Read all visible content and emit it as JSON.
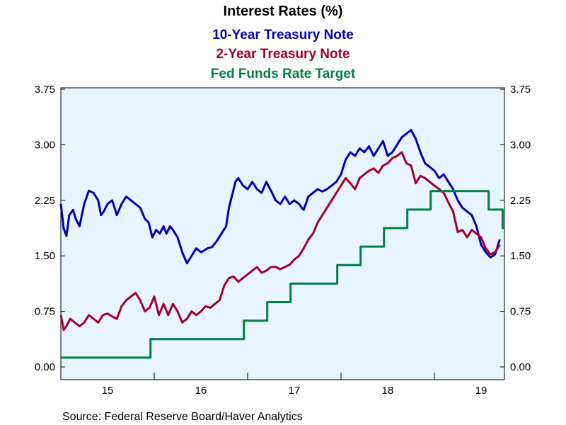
{
  "chart_data": {
    "type": "line",
    "title": "Interest Rates (%)",
    "source": "Source:  Federal Reserve Board/Haver Analytics",
    "ylim": [
      0,
      3.75
    ],
    "y_ticks": [
      "0.00",
      "0.75",
      "1.50",
      "2.25",
      "3.00",
      "3.75"
    ],
    "y_tick_values": [
      0,
      0.75,
      1.5,
      2.25,
      3.0,
      3.75
    ],
    "xlim": [
      2015.0,
      2019.75
    ],
    "x_tick_labels": [
      "15",
      "16",
      "17",
      "18",
      "19"
    ],
    "x_tick_label_positions": [
      2015.5,
      2016.5,
      2017.5,
      2018.5,
      2019.5
    ],
    "x_year_boundaries": [
      2016,
      2017,
      2018,
      2019
    ],
    "plot_background": "#E8F4FF",
    "series": [
      {
        "name": "10-Year Treasury Note",
        "color": "#0000B0",
        "x": [
          2015.0,
          2015.03,
          2015.06,
          2015.09,
          2015.13,
          2015.16,
          2015.2,
          2015.25,
          2015.3,
          2015.35,
          2015.4,
          2015.43,
          2015.46,
          2015.5,
          2015.55,
          2015.6,
          2015.65,
          2015.7,
          2015.75,
          2015.8,
          2015.85,
          2015.9,
          2015.94,
          2015.98,
          2016.02,
          2016.06,
          2016.1,
          2016.13,
          2016.17,
          2016.2,
          2016.25,
          2016.3,
          2016.35,
          2016.4,
          2016.45,
          2016.5,
          2016.53,
          2016.57,
          2016.62,
          2016.67,
          2016.72,
          2016.77,
          2016.8,
          2016.84,
          2016.87,
          2016.9,
          2016.95,
          2017.0,
          2017.05,
          2017.1,
          2017.15,
          2017.2,
          2017.25,
          2017.3,
          2017.35,
          2017.4,
          2017.45,
          2017.5,
          2017.55,
          2017.6,
          2017.65,
          2017.7,
          2017.75,
          2017.8,
          2017.85,
          2017.9,
          2017.95,
          2018.0,
          2018.05,
          2018.1,
          2018.15,
          2018.2,
          2018.25,
          2018.3,
          2018.35,
          2018.4,
          2018.45,
          2018.5,
          2018.55,
          2018.6,
          2018.65,
          2018.7,
          2018.75,
          2018.8,
          2018.85,
          2018.9,
          2018.95,
          2019.0,
          2019.05,
          2019.1,
          2019.15,
          2019.2,
          2019.25,
          2019.3,
          2019.35,
          2019.4,
          2019.45,
          2019.5,
          2019.55,
          2019.6,
          2019.65,
          2019.7
        ],
        "values": [
          2.2,
          1.87,
          1.77,
          2.05,
          2.12,
          2.0,
          1.9,
          2.2,
          2.38,
          2.35,
          2.25,
          2.05,
          2.1,
          2.2,
          2.25,
          2.05,
          2.2,
          2.3,
          2.25,
          2.2,
          2.15,
          2.0,
          1.95,
          1.75,
          1.85,
          1.8,
          1.9,
          1.8,
          1.9,
          1.85,
          1.75,
          1.55,
          1.4,
          1.5,
          1.6,
          1.55,
          1.57,
          1.6,
          1.62,
          1.7,
          1.8,
          1.9,
          2.15,
          2.35,
          2.5,
          2.55,
          2.45,
          2.4,
          2.5,
          2.4,
          2.35,
          2.5,
          2.38,
          2.25,
          2.2,
          2.3,
          2.2,
          2.25,
          2.2,
          2.12,
          2.3,
          2.35,
          2.4,
          2.37,
          2.4,
          2.45,
          2.5,
          2.6,
          2.8,
          2.9,
          2.85,
          2.95,
          2.9,
          2.98,
          2.85,
          2.95,
          3.05,
          2.85,
          2.9,
          3.0,
          3.1,
          3.15,
          3.2,
          3.08,
          2.9,
          2.75,
          2.7,
          2.65,
          2.55,
          2.6,
          2.5,
          2.4,
          2.25,
          2.15,
          2.1,
          2.05,
          1.9,
          1.65,
          1.55,
          1.48,
          1.52,
          1.72
        ]
      },
      {
        "name": "2-Year Treasury Note",
        "color": "#A0002C",
        "x": [
          2015.0,
          2015.03,
          2015.06,
          2015.1,
          2015.15,
          2015.2,
          2015.25,
          2015.3,
          2015.35,
          2015.4,
          2015.45,
          2015.5,
          2015.55,
          2015.6,
          2015.65,
          2015.7,
          2015.75,
          2015.8,
          2015.85,
          2015.9,
          2015.95,
          2016.0,
          2016.05,
          2016.1,
          2016.15,
          2016.2,
          2016.25,
          2016.3,
          2016.35,
          2016.4,
          2016.45,
          2016.5,
          2016.55,
          2016.6,
          2016.65,
          2016.7,
          2016.75,
          2016.8,
          2016.85,
          2016.9,
          2016.95,
          2017.0,
          2017.05,
          2017.1,
          2017.15,
          2017.2,
          2017.25,
          2017.3,
          2017.35,
          2017.4,
          2017.45,
          2017.5,
          2017.55,
          2017.6,
          2017.65,
          2017.7,
          2017.75,
          2017.8,
          2017.85,
          2017.9,
          2017.95,
          2018.0,
          2018.05,
          2018.1,
          2018.15,
          2018.2,
          2018.25,
          2018.3,
          2018.35,
          2018.4,
          2018.45,
          2018.5,
          2018.55,
          2018.6,
          2018.65,
          2018.7,
          2018.75,
          2018.8,
          2018.85,
          2018.9,
          2018.95,
          2019.0,
          2019.05,
          2019.1,
          2019.15,
          2019.2,
          2019.25,
          2019.3,
          2019.35,
          2019.4,
          2019.45,
          2019.5,
          2019.55,
          2019.6,
          2019.65,
          2019.7
        ],
        "values": [
          0.7,
          0.5,
          0.55,
          0.65,
          0.6,
          0.55,
          0.6,
          0.7,
          0.65,
          0.6,
          0.7,
          0.72,
          0.68,
          0.65,
          0.82,
          0.9,
          0.95,
          1.0,
          0.9,
          0.75,
          0.8,
          0.95,
          0.7,
          0.85,
          0.7,
          0.85,
          0.75,
          0.6,
          0.65,
          0.75,
          0.7,
          0.75,
          0.82,
          0.8,
          0.85,
          0.9,
          1.1,
          1.2,
          1.22,
          1.15,
          1.2,
          1.25,
          1.3,
          1.35,
          1.27,
          1.3,
          1.35,
          1.35,
          1.32,
          1.35,
          1.38,
          1.45,
          1.5,
          1.6,
          1.72,
          1.8,
          1.95,
          2.05,
          2.15,
          2.25,
          2.35,
          2.45,
          2.55,
          2.48,
          2.4,
          2.55,
          2.6,
          2.65,
          2.68,
          2.62,
          2.72,
          2.75,
          2.82,
          2.85,
          2.9,
          2.75,
          2.72,
          2.48,
          2.58,
          2.55,
          2.5,
          2.45,
          2.4,
          2.35,
          2.22,
          2.1,
          1.82,
          1.85,
          1.75,
          1.85,
          1.8,
          1.75,
          1.6,
          1.52,
          1.55,
          1.65
        ]
      },
      {
        "name": "Fed Funds Rate Target",
        "color": "#008040",
        "step": true,
        "x": [
          2015.0,
          2015.96,
          2016.96,
          2017.21,
          2017.46,
          2017.96,
          2018.21,
          2018.46,
          2018.71,
          2018.96,
          2019.58,
          2019.73,
          2019.75
        ],
        "values": [
          0.125,
          0.375,
          0.625,
          0.875,
          1.125,
          1.375,
          1.625,
          1.875,
          2.125,
          2.375,
          2.125,
          1.875,
          1.875
        ]
      }
    ]
  }
}
